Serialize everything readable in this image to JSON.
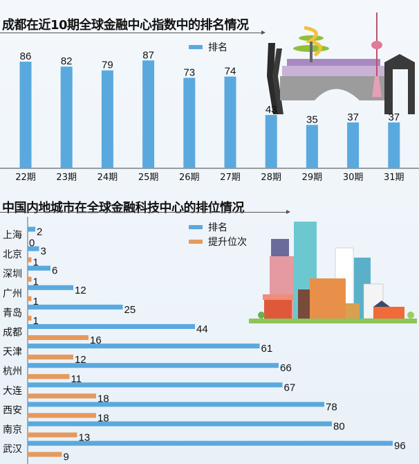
{
  "colors": {
    "rank": "#5aa9de",
    "rise": "#e49a5e"
  },
  "chart_data": [
    {
      "type": "bar",
      "title": "成都在近10期全球金融中心指数中的排名情况",
      "categories": [
        "22期",
        "23期",
        "24期",
        "25期",
        "26期",
        "27期",
        "28期",
        "29期",
        "30期",
        "31期"
      ],
      "series": [
        {
          "name": "排名",
          "values": [
            86,
            82,
            79,
            87,
            73,
            74,
            43,
            35,
            37,
            37
          ]
        }
      ],
      "legend": "top-center",
      "illustration": "chengdu-landmarks"
    },
    {
      "type": "bar",
      "orientation": "horizontal",
      "title": "中国内地城市在全球金融科技中心的排位情况",
      "categories": [
        "上海",
        "北京",
        "深圳",
        "广州",
        "青岛",
        "成都",
        "天津",
        "杭州",
        "大连",
        "西安",
        "南京",
        "武汉"
      ],
      "series": [
        {
          "name": "排名",
          "values": [
            2,
            3,
            6,
            12,
            25,
            44,
            61,
            66,
            67,
            78,
            80,
            96
          ]
        },
        {
          "name": "提升位次",
          "values": [
            0,
            1,
            1,
            1,
            1,
            16,
            12,
            11,
            18,
            18,
            13,
            9
          ]
        }
      ],
      "legend": "top-center",
      "illustration": "city-skyline"
    }
  ]
}
